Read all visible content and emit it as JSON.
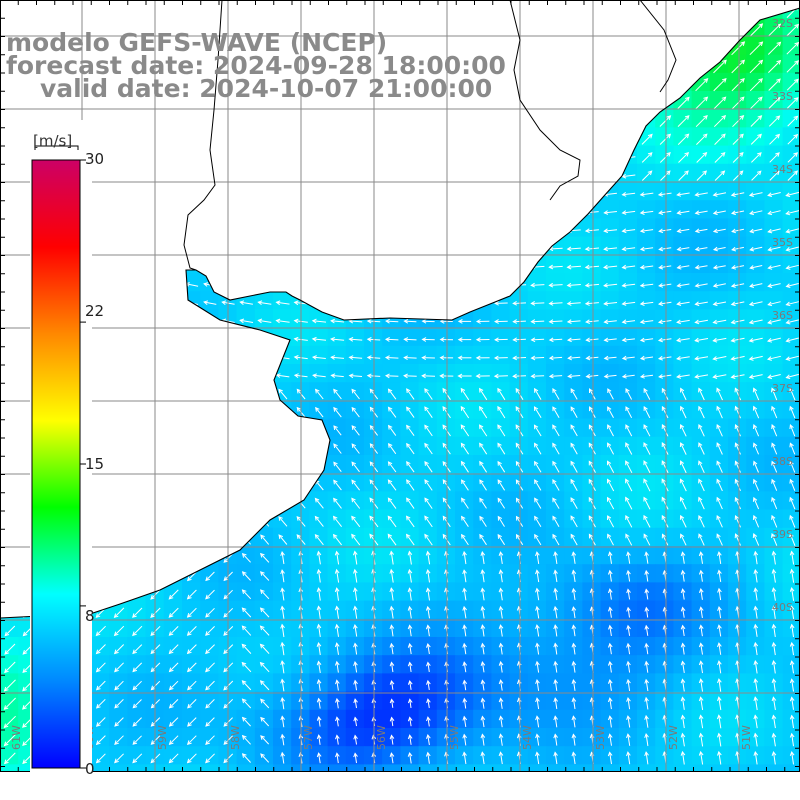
{
  "title": {
    "line1": "modelo GEFS-WAVE (NCEP)",
    "line2": "forecast date: 2024-09-28 18:00:00",
    "line3": "valid date: 2024-10-07 21:00:00"
  },
  "colorbar": {
    "unit": "[m/s]",
    "ticks": [
      "30",
      "22",
      "15",
      "8",
      "0"
    ],
    "tick_values": [
      30,
      22,
      15,
      8,
      0
    ],
    "range": [
      0,
      30
    ],
    "colors": [
      "#0000ff",
      "#0088ff",
      "#00ffff",
      "#00ff00",
      "#ffff00",
      "#ff8800",
      "#ff0000",
      "#cc0066"
    ]
  },
  "grid": {
    "lon_labels": [
      "61W",
      "60W",
      "59W",
      "58W",
      "57W",
      "56W",
      "55W",
      "54W",
      "53W",
      "52W",
      "51W",
      "50W"
    ],
    "lat_labels": [
      "32S",
      "33S",
      "34S",
      "35S",
      "36S",
      "37S",
      "38S",
      "39S",
      "40S"
    ]
  },
  "field": {
    "variable": "wind speed and direction",
    "typical_speed_ms": 6,
    "color_land": "#ffffff",
    "color_grid": "#888888"
  }
}
